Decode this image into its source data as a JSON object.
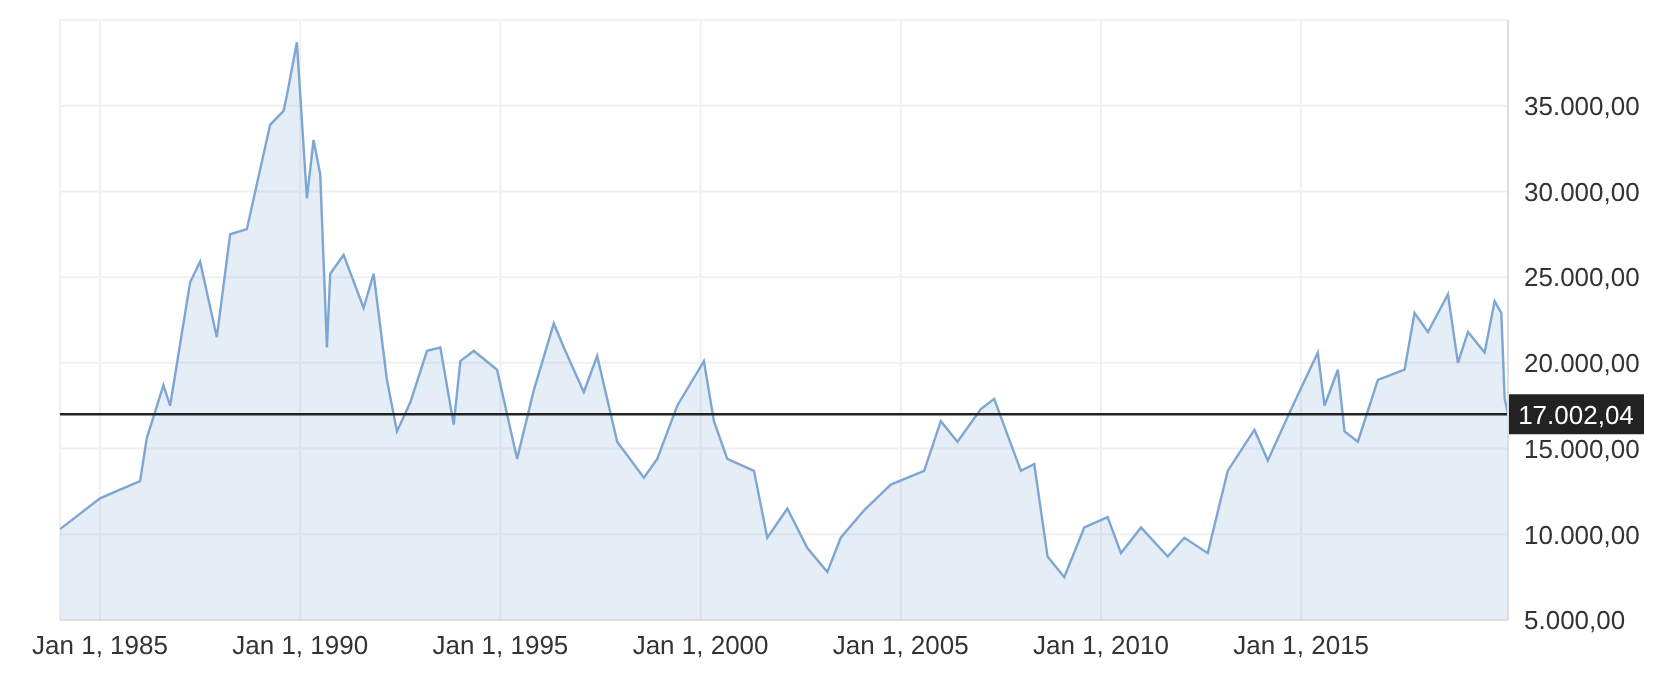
{
  "chart_data": {
    "type": "area",
    "x": [
      "1984-01",
      "1984-05",
      "1985-01",
      "1985-07",
      "1986-01",
      "1986-03",
      "1986-08",
      "1986-10",
      "1987-04",
      "1987-07",
      "1987-12",
      "1988-04",
      "1988-09",
      "1989-04",
      "1989-08",
      "1989-09",
      "1989-12",
      "1990-03",
      "1990-05",
      "1990-07",
      "1990-09",
      "1990-10",
      "1991-02",
      "1991-08",
      "1991-11",
      "1992-03",
      "1992-06",
      "1992-10",
      "1993-03",
      "1993-07",
      "1993-11",
      "1994-01",
      "1994-05",
      "1994-12",
      "1995-06",
      "1995-11",
      "1996-05",
      "1996-08",
      "1997-02",
      "1997-06",
      "1997-12",
      "1998-08",
      "1998-12",
      "1999-06",
      "2000-02",
      "2000-05",
      "2000-09",
      "2001-05",
      "2001-09",
      "2002-03",
      "2002-09",
      "2003-03",
      "2003-07",
      "2004-02",
      "2004-10",
      "2005-08",
      "2006-01",
      "2006-06",
      "2007-01",
      "2007-05",
      "2008-01",
      "2008-05",
      "2008-09",
      "2009-02",
      "2009-08",
      "2010-03",
      "2010-07",
      "2011-01",
      "2011-09",
      "2012-02",
      "2012-09",
      "2013-03",
      "2013-11",
      "2014-03",
      "2014-10",
      "2015-06",
      "2015-08",
      "2015-12",
      "2016-02",
      "2016-06",
      "2016-12",
      "2017-08",
      "2017-11",
      "2018-03",
      "2018-09",
      "2018-12",
      "2019-03",
      "2019-08",
      "2019-11",
      "2020-01",
      "2020-02",
      "2020-03"
    ],
    "series": [
      {
        "color": "#7ea6d3",
        "values": [
          10300,
          10900,
          12100,
          12600,
          13100,
          15600,
          18700,
          17500,
          24700,
          25900,
          21500,
          27500,
          27800,
          33900,
          34700,
          35600,
          38700,
          29600,
          33000,
          31000,
          20900,
          25200,
          26300,
          23200,
          25200,
          19000,
          16000,
          17700,
          20700,
          20900,
          16400,
          20100,
          20700,
          19600,
          14400,
          18400,
          22300,
          20900,
          18300,
          20400,
          15400,
          13300,
          14400,
          17500,
          20100,
          16600,
          14400,
          13700,
          9800,
          11500,
          9200,
          7800,
          9800,
          11400,
          12900,
          13700,
          16600,
          15400,
          17300,
          17900,
          13700,
          14100,
          8700,
          7500,
          10400,
          11000,
          8900,
          10400,
          8700,
          9800,
          8900,
          13700,
          16100,
          14300,
          17300,
          20600,
          17500,
          19600,
          16000,
          15400,
          19000,
          19600,
          22900,
          21800,
          24000,
          20000,
          21800,
          20600,
          23600,
          22900,
          17900,
          17000
        ]
      }
    ],
    "xlim": [
      "1984-01",
      "2020-03"
    ],
    "xticks": [
      {
        "value": "1985-01-01",
        "label": "Jan 1, 1985"
      },
      {
        "value": "1990-01-01",
        "label": "Jan 1, 1990"
      },
      {
        "value": "1995-01-01",
        "label": "Jan 1, 1995"
      },
      {
        "value": "2000-01-01",
        "label": "Jan 1, 2000"
      },
      {
        "value": "2005-01-01",
        "label": "Jan 1, 2005"
      },
      {
        "value": "2010-01-01",
        "label": "Jan 1, 2010"
      },
      {
        "value": "2015-01-01",
        "label": "Jan 1, 2015"
      }
    ],
    "ylim": [
      5000,
      40000
    ],
    "yticks": [
      {
        "value": 5000,
        "label": "5.000,00"
      },
      {
        "value": 10000,
        "label": "10.000,00"
      },
      {
        "value": 15000,
        "label": "15.000,00"
      },
      {
        "value": 20000,
        "label": "20.000,00"
      },
      {
        "value": 25000,
        "label": "25.000,00"
      },
      {
        "value": 30000,
        "label": "30.000,00"
      },
      {
        "value": 35000,
        "label": "35.000,00"
      }
    ],
    "grid": true,
    "ref_lines": [
      {
        "axis": "y",
        "value": 17002.04,
        "label": "17.002,04",
        "color": "#222222"
      }
    ]
  }
}
